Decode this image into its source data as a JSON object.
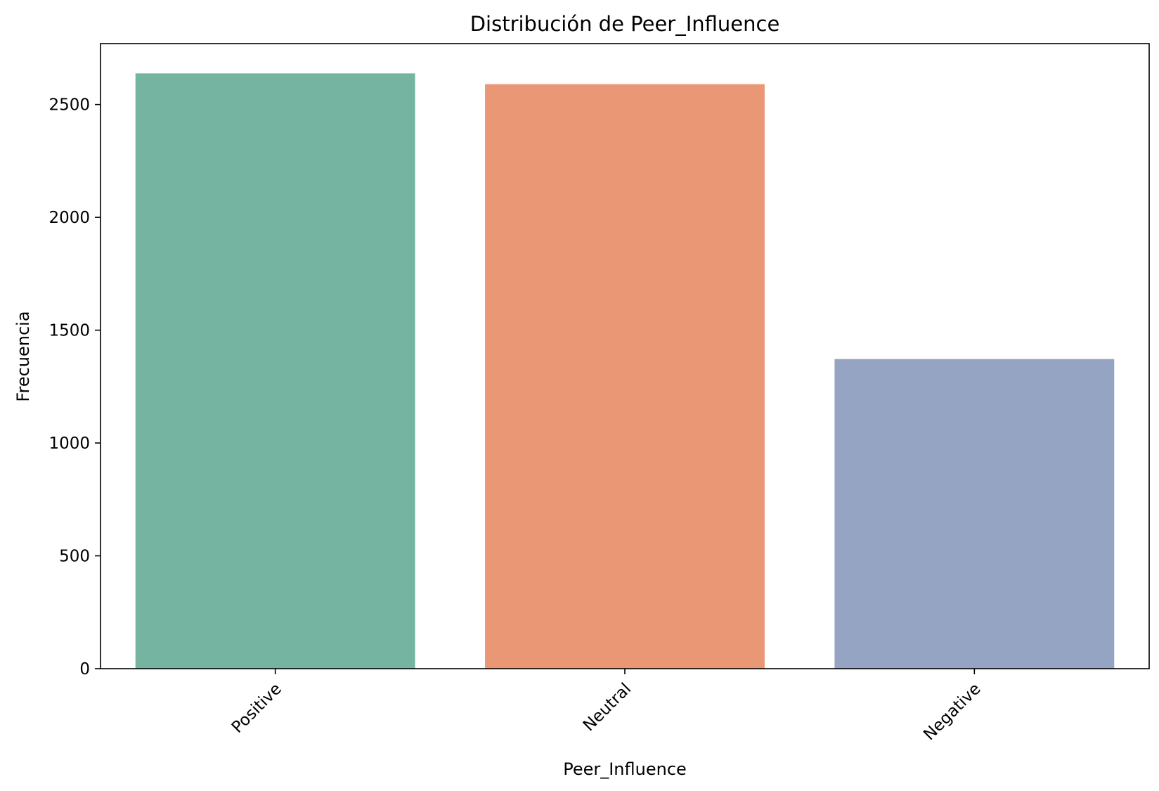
{
  "chart_data": {
    "type": "bar",
    "title": "Distribución de Peer_Influence",
    "xlabel": "Peer_Influence",
    "ylabel": "Frecuencia",
    "categories": [
      "Positive",
      "Neutral",
      "Negative"
    ],
    "values": [
      2638,
      2590,
      1372
    ],
    "colors": [
      "#75b4a0",
      "#e99774",
      "#95a4c2"
    ],
    "ylim": [
      0,
      2770
    ],
    "yticks": [
      0,
      500,
      1000,
      1500,
      2000,
      2500
    ],
    "grid": false,
    "legend": "none"
  }
}
